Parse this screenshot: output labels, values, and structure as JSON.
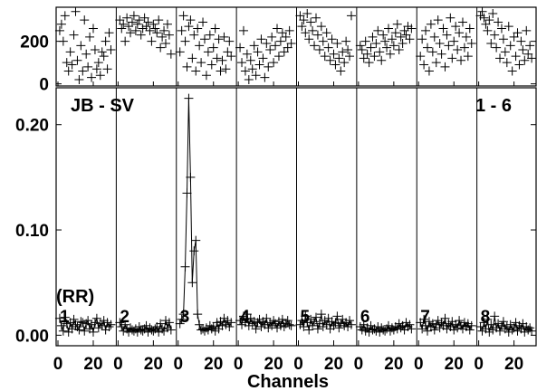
{
  "chart_data": {
    "type": "scatter",
    "baseline_label": "JB - SV",
    "if_range_label": "1 - 6",
    "polarization": "(RR)",
    "xlabel": "Channels",
    "x_ticks": [
      "0",
      "20"
    ],
    "phase_ticks": [
      "0",
      "200"
    ],
    "amp_ticks": [
      "0.00",
      "0.10",
      "0.20"
    ],
    "amp_ylim": [
      -0.01,
      0.235
    ],
    "phase_ylim": [
      -10,
      360
    ],
    "x_range": [
      0,
      32
    ],
    "series": [
      {
        "label": "1",
        "amplitude": [
          0.016,
          0.009,
          0.004,
          0.017,
          0.011,
          0.003,
          0.012,
          0.006,
          0.015,
          0.01,
          0.008,
          0.005,
          0.013,
          0.012,
          0.004,
          0.011,
          0.014,
          0.006,
          0.01,
          0.003,
          0.012,
          0.016,
          0.007,
          0.011,
          0.009,
          0.014,
          0.005,
          0.012,
          0.008,
          0.01
        ],
        "phase": [
          250,
          280,
          200,
          320,
          100,
          60,
          150,
          90,
          230,
          340,
          110,
          20,
          180,
          60,
          300,
          140,
          80,
          220,
          30,
          260,
          160,
          70,
          100,
          40,
          150,
          130,
          200,
          70,
          240,
          160
        ]
      },
      {
        "label": "2",
        "amplitude": [
          0.012,
          0.008,
          0.004,
          0.01,
          0.006,
          0.003,
          0.007,
          0.005,
          0.004,
          0.006,
          0.003,
          0.008,
          0.005,
          0.004,
          0.006,
          0.009,
          0.003,
          0.007,
          0.005,
          0.004,
          0.006,
          0.008,
          0.003,
          0.011,
          0.006,
          0.004,
          0.014,
          0.007,
          0.012,
          0.005
        ],
        "phase": [
          300,
          260,
          280,
          200,
          310,
          270,
          240,
          290,
          320,
          250,
          280,
          300,
          230,
          260,
          310,
          270,
          290,
          250,
          200,
          280,
          260,
          240,
          300,
          170,
          220,
          250,
          190,
          280,
          230,
          140
        ]
      },
      {
        "label": "3",
        "amplitude": [
          0.011,
          0.015,
          0.02,
          0.065,
          0.135,
          0.225,
          0.15,
          0.05,
          0.08,
          0.09,
          0.02,
          0.01,
          0.005,
          0.006,
          0.004,
          0.007,
          0.005,
          0.009,
          0.006,
          0.008,
          0.004,
          0.012,
          0.006,
          0.013,
          0.009,
          0.016,
          0.01,
          0.014,
          0.008,
          0.012
        ],
        "phase": [
          150,
          250,
          320,
          200,
          80,
          270,
          300,
          120,
          230,
          60,
          260,
          180,
          100,
          290,
          210,
          40,
          150,
          230,
          90,
          170,
          260,
          120,
          210,
          60,
          110,
          220,
          70,
          150,
          200,
          130
        ]
      },
      {
        "label": "4",
        "amplitude": [
          0.014,
          0.01,
          0.018,
          0.012,
          0.02,
          0.009,
          0.016,
          0.011,
          0.013,
          0.006,
          0.012,
          0.015,
          0.008,
          0.013,
          0.01,
          0.016,
          0.007,
          0.012,
          0.009,
          0.014,
          0.011,
          0.007,
          0.013,
          0.009,
          0.015,
          0.008,
          0.011,
          0.014,
          0.01,
          0.009
        ],
        "phase": [
          170,
          100,
          250,
          60,
          140,
          20,
          110,
          70,
          180,
          40,
          150,
          90,
          210,
          120,
          30,
          190,
          80,
          160,
          220,
          100,
          180,
          260,
          130,
          200,
          240,
          150,
          220,
          170,
          250,
          190
        ]
      },
      {
        "label": "5",
        "amplitude": [
          0.01,
          0.014,
          0.008,
          0.018,
          0.012,
          0.005,
          0.015,
          0.009,
          0.013,
          0.017,
          0.006,
          0.011,
          0.02,
          0.008,
          0.014,
          0.01,
          0.016,
          0.006,
          0.013,
          0.009,
          0.012,
          0.018,
          0.007,
          0.011,
          0.015,
          0.009,
          0.012,
          0.008,
          0.014,
          0.01
        ],
        "phase": [
          320,
          270,
          300,
          240,
          330,
          210,
          290,
          250,
          180,
          310,
          230,
          160,
          270,
          200,
          130,
          240,
          170,
          110,
          210,
          140,
          90,
          190,
          120,
          60,
          150,
          100,
          200,
          160,
          130,
          320
        ]
      },
      {
        "label": "6",
        "amplitude": [
          0.008,
          0.005,
          0.01,
          0.004,
          0.007,
          0.003,
          0.009,
          0.005,
          0.006,
          0.004,
          0.008,
          0.003,
          0.007,
          0.005,
          0.004,
          0.006,
          0.009,
          0.004,
          0.007,
          0.005,
          0.008,
          0.006,
          0.011,
          0.007,
          0.009,
          0.005,
          0.012,
          0.008,
          0.01,
          0.006
        ],
        "phase": [
          180,
          160,
          120,
          200,
          140,
          100,
          170,
          220,
          130,
          190,
          250,
          150,
          110,
          230,
          200,
          170,
          260,
          140,
          210,
          180,
          240,
          280,
          160,
          220,
          190,
          250,
          230,
          270,
          210,
          260
        ]
      },
      {
        "label": "7",
        "amplitude": [
          0.012,
          0.006,
          0.015,
          0.009,
          0.004,
          0.013,
          0.008,
          0.011,
          0.005,
          0.01,
          0.014,
          0.007,
          0.012,
          0.009,
          0.016,
          0.006,
          0.011,
          0.008,
          0.013,
          0.005,
          0.01,
          0.007,
          0.014,
          0.009,
          0.006,
          0.012,
          0.008,
          0.011,
          0.005,
          0.009
        ],
        "phase": [
          130,
          210,
          90,
          250,
          170,
          60,
          280,
          150,
          220,
          100,
          300,
          190,
          140,
          260,
          80,
          230,
          180,
          310,
          120,
          200,
          270,
          160,
          240,
          110,
          290,
          170,
          220,
          130,
          260,
          190
        ]
      },
      {
        "label": "8",
        "amplitude": [
          0.008,
          0.004,
          0.012,
          0.006,
          0.015,
          0.003,
          0.01,
          0.005,
          0.018,
          0.007,
          0.011,
          0.004,
          0.009,
          0.013,
          0.006,
          0.008,
          0.003,
          0.01,
          0.005,
          0.007,
          0.012,
          0.004,
          0.009,
          0.006,
          0.011,
          0.003,
          0.008,
          0.005,
          0.007,
          0.004
        ],
        "phase": [
          320,
          340,
          310,
          280,
          250,
          300,
          190,
          330,
          230,
          170,
          290,
          120,
          260,
          210,
          150,
          100,
          270,
          180,
          60,
          220,
          130,
          240,
          90,
          200,
          160,
          110,
          250,
          140,
          180,
          120
        ]
      }
    ]
  }
}
